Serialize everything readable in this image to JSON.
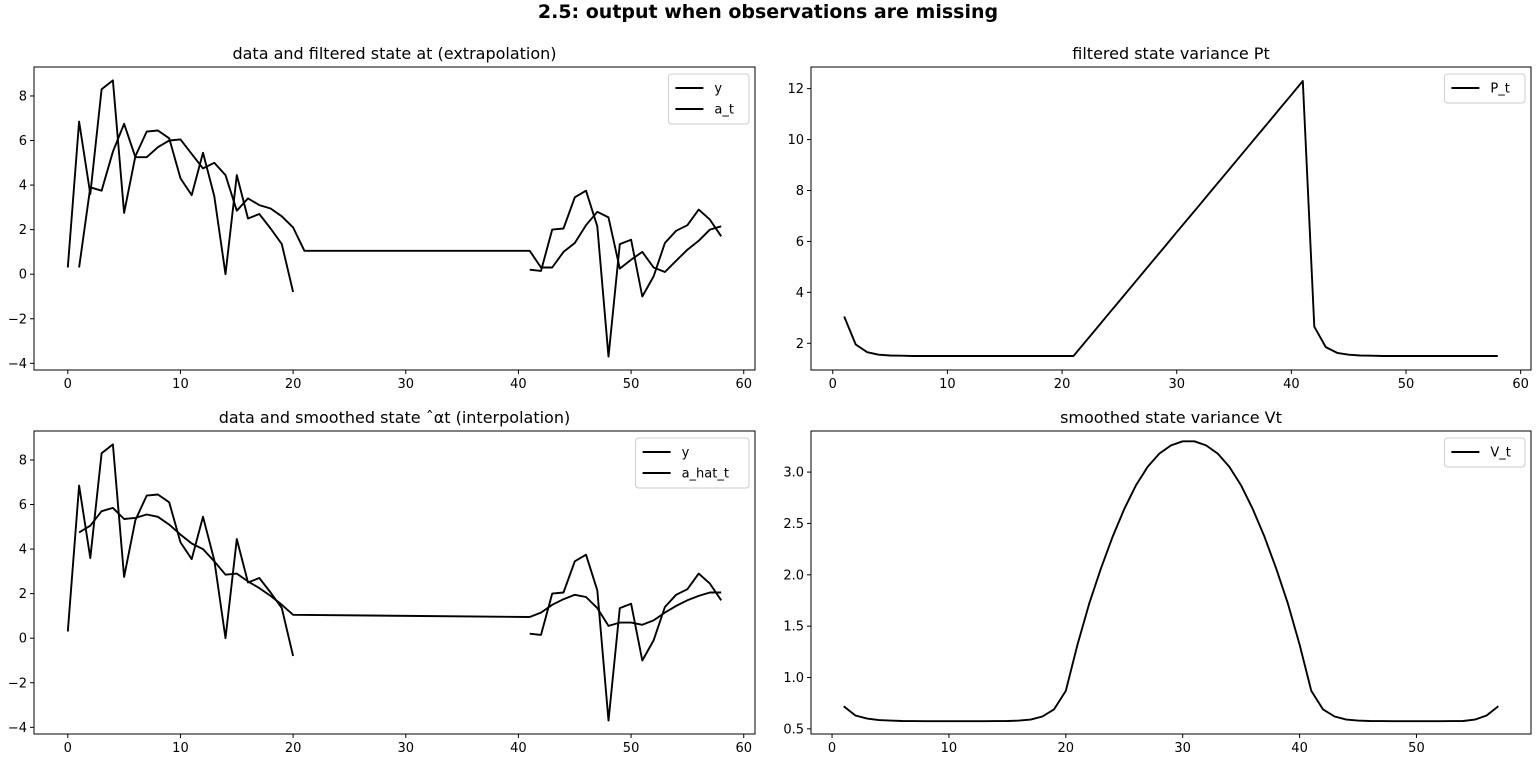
{
  "suptitle": "2.5: output when observations are missing",
  "chart_data": [
    {
      "type": "line",
      "title": "data and filtered state at (extrapolation)",
      "xlabel": "",
      "ylabel": "",
      "xlim": [
        -3,
        61
      ],
      "ylim": [
        -4.3,
        9.3
      ],
      "xticks": [
        0,
        10,
        20,
        30,
        40,
        50,
        60
      ],
      "yticks": [
        -4,
        -2,
        0,
        2,
        4,
        6,
        8
      ],
      "legend": "top-right",
      "series": [
        {
          "name": "y",
          "color": "#000000",
          "segments": [
            {
              "x": [
                0,
                1,
                2,
                3,
                4,
                5,
                6,
                7,
                8,
                9,
                10,
                11,
                12,
                13,
                14,
                15,
                16,
                17,
                18,
                19,
                20
              ],
              "y": [
                0.3,
                6.85,
                3.6,
                8.3,
                8.7,
                2.75,
                5.3,
                6.4,
                6.45,
                6.1,
                4.3,
                3.55,
                5.45,
                3.5,
                0.0,
                4.45,
                2.5,
                2.7,
                2.05,
                1.35,
                -0.8
              ]
            },
            {
              "x": [
                41,
                42,
                43,
                44,
                45,
                46,
                47,
                48,
                49,
                50,
                51,
                52,
                53,
                54,
                55,
                56,
                57,
                58
              ],
              "y": [
                0.2,
                0.15,
                2.0,
                2.05,
                3.45,
                3.75,
                2.15,
                -3.7,
                1.35,
                1.55,
                -1.0,
                -0.1,
                1.4,
                1.95,
                2.2,
                2.9,
                2.45,
                1.7
              ]
            }
          ]
        },
        {
          "name": "a_t",
          "color": "#000000",
          "segments": [
            {
              "x": [
                1,
                2,
                3,
                4,
                5,
                6,
                7,
                8,
                9,
                10,
                11,
                12,
                13,
                14,
                15,
                16,
                17,
                18,
                19,
                20,
                21,
                22,
                23,
                24,
                25,
                26,
                27,
                28,
                29,
                30,
                31,
                32,
                33,
                34,
                35,
                36,
                37,
                38,
                39,
                40,
                41,
                42,
                43,
                44,
                45,
                46,
                47,
                48,
                49,
                50,
                51,
                52,
                53,
                54,
                55,
                56,
                57,
                58
              ],
              "y": [
                0.3,
                3.9,
                3.75,
                5.5,
                6.75,
                5.25,
                5.25,
                5.7,
                6.0,
                6.05,
                5.4,
                4.75,
                5.0,
                4.45,
                2.85,
                3.4,
                3.1,
                2.95,
                2.6,
                2.1,
                1.05,
                1.05,
                1.05,
                1.05,
                1.05,
                1.05,
                1.05,
                1.05,
                1.05,
                1.05,
                1.05,
                1.05,
                1.05,
                1.05,
                1.05,
                1.05,
                1.05,
                1.05,
                1.05,
                1.05,
                1.05,
                0.3,
                0.3,
                1.0,
                1.4,
                2.2,
                2.8,
                2.55,
                0.25,
                0.65,
                1.0,
                0.3,
                0.1,
                0.6,
                1.1,
                1.5,
                2.0,
                2.15
              ]
            }
          ]
        }
      ]
    },
    {
      "type": "line",
      "title": "filtered state variance Pt",
      "xlabel": "",
      "ylabel": "",
      "xlim": [
        -1.9,
        60.9
      ],
      "ylim": [
        0.95,
        12.85
      ],
      "xticks": [
        0,
        10,
        20,
        30,
        40,
        50,
        60
      ],
      "yticks": [
        2,
        4,
        6,
        8,
        10,
        12
      ],
      "legend": "top-right",
      "series": [
        {
          "name": "P_t",
          "color": "#000000",
          "segments": [
            {
              "x": [
                1,
                2,
                3,
                4,
                5,
                6,
                7,
                8,
                9,
                10,
                11,
                12,
                13,
                14,
                15,
                16,
                17,
                18,
                19,
                20,
                21,
                22,
                23,
                24,
                25,
                26,
                27,
                28,
                29,
                30,
                31,
                32,
                33,
                34,
                35,
                36,
                37,
                38,
                39,
                40,
                41,
                42,
                43,
                44,
                45,
                46,
                47,
                48,
                49,
                50,
                51,
                52,
                53,
                54,
                55,
                56,
                57,
                58
              ],
              "y": [
                3.05,
                1.95,
                1.65,
                1.55,
                1.52,
                1.51,
                1.5,
                1.5,
                1.5,
                1.5,
                1.5,
                1.5,
                1.5,
                1.5,
                1.5,
                1.5,
                1.5,
                1.5,
                1.5,
                1.5,
                1.5,
                2.04,
                2.58,
                3.12,
                3.66,
                4.2,
                4.74,
                5.28,
                5.82,
                6.36,
                6.9,
                7.44,
                7.98,
                8.52,
                9.06,
                9.6,
                10.14,
                10.68,
                11.22,
                11.76,
                12.3,
                2.65,
                1.85,
                1.62,
                1.55,
                1.52,
                1.51,
                1.5,
                1.5,
                1.5,
                1.5,
                1.5,
                1.5,
                1.5,
                1.5,
                1.5,
                1.5,
                1.5
              ]
            }
          ]
        }
      ]
    },
    {
      "type": "line",
      "title": "data and smoothed state ˆαt (interpolation)",
      "xlabel": "",
      "ylabel": "",
      "xlim": [
        -3,
        61
      ],
      "ylim": [
        -4.3,
        9.3
      ],
      "xticks": [
        0,
        10,
        20,
        30,
        40,
        50,
        60
      ],
      "yticks": [
        -4,
        -2,
        0,
        2,
        4,
        6,
        8
      ],
      "legend": "top-right",
      "series": [
        {
          "name": "y",
          "color": "#000000",
          "segments": [
            {
              "x": [
                0,
                1,
                2,
                3,
                4,
                5,
                6,
                7,
                8,
                9,
                10,
                11,
                12,
                13,
                14,
                15,
                16,
                17,
                18,
                19,
                20
              ],
              "y": [
                0.3,
                6.85,
                3.6,
                8.3,
                8.7,
                2.75,
                5.3,
                6.4,
                6.45,
                6.1,
                4.3,
                3.55,
                5.45,
                3.5,
                0.0,
                4.45,
                2.5,
                2.7,
                2.05,
                1.35,
                -0.8
              ]
            },
            {
              "x": [
                41,
                42,
                43,
                44,
                45,
                46,
                47,
                48,
                49,
                50,
                51,
                52,
                53,
                54,
                55,
                56,
                57,
                58
              ],
              "y": [
                0.2,
                0.15,
                2.0,
                2.05,
                3.45,
                3.75,
                2.15,
                -3.7,
                1.35,
                1.55,
                -1.0,
                -0.1,
                1.4,
                1.95,
                2.2,
                2.9,
                2.45,
                1.7
              ]
            }
          ]
        },
        {
          "name": "a_hat_t",
          "color": "#000000",
          "segments": [
            {
              "x": [
                1,
                2,
                3,
                4,
                5,
                6,
                7,
                8,
                9,
                10,
                11,
                12,
                13,
                14,
                15,
                16,
                17,
                18,
                19,
                20,
                41,
                42,
                43,
                44,
                45,
                46,
                47,
                48,
                49,
                50,
                51,
                52,
                53,
                54,
                55,
                56,
                57,
                58
              ],
              "y": [
                4.75,
                5.05,
                5.7,
                5.85,
                5.35,
                5.4,
                5.55,
                5.45,
                5.1,
                4.65,
                4.25,
                4.0,
                3.45,
                2.85,
                2.9,
                2.55,
                2.25,
                1.9,
                1.5,
                1.05,
                0.95,
                1.15,
                1.5,
                1.75,
                1.95,
                1.85,
                1.35,
                0.55,
                0.7,
                0.7,
                0.6,
                0.8,
                1.15,
                1.45,
                1.7,
                1.9,
                2.05,
                2.05
              ]
            }
          ]
        }
      ]
    },
    {
      "type": "line",
      "title": "smoothed state variance Vt",
      "xlabel": "",
      "ylabel": "",
      "xlim": [
        -1.8,
        59.8
      ],
      "ylim": [
        0.45,
        3.4
      ],
      "xticks": [
        0,
        10,
        20,
        30,
        40,
        50
      ],
      "yticks": [
        0.5,
        1.0,
        1.5,
        2.0,
        2.5,
        3.0
      ],
      "legend": "top-right",
      "series": [
        {
          "name": "V_t",
          "color": "#000000",
          "segments": [
            {
              "x": [
                1,
                2,
                3,
                4,
                5,
                6,
                7,
                8,
                9,
                10,
                11,
                12,
                13,
                14,
                15,
                16,
                17,
                18,
                19,
                20,
                21,
                22,
                23,
                24,
                25,
                26,
                27,
                28,
                29,
                30,
                31,
                32,
                33,
                34,
                35,
                36,
                37,
                38,
                39,
                40,
                41,
                42,
                43,
                44,
                45,
                46,
                47,
                48,
                49,
                50,
                51,
                52,
                53,
                54,
                55,
                56,
                57
              ],
              "y": [
                0.72,
                0.63,
                0.6,
                0.585,
                0.58,
                0.577,
                0.576,
                0.575,
                0.575,
                0.575,
                0.575,
                0.575,
                0.575,
                0.576,
                0.577,
                0.58,
                0.59,
                0.62,
                0.69,
                0.87,
                1.32,
                1.72,
                2.06,
                2.37,
                2.64,
                2.87,
                3.05,
                3.18,
                3.26,
                3.3,
                3.3,
                3.26,
                3.18,
                3.05,
                2.87,
                2.64,
                2.37,
                2.06,
                1.72,
                1.32,
                0.87,
                0.69,
                0.62,
                0.59,
                0.58,
                0.577,
                0.576,
                0.575,
                0.575,
                0.575,
                0.575,
                0.575,
                0.576,
                0.577,
                0.59,
                0.63,
                0.72
              ]
            }
          ]
        }
      ]
    }
  ]
}
